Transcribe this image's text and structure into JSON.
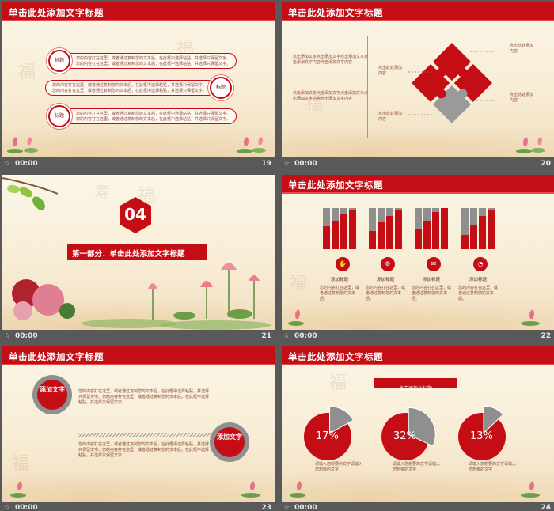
{
  "slides": [
    {
      "number": "19",
      "time": "00:00",
      "title": "单击此处添加文字标题",
      "rows": [
        {
          "badge": "标题",
          "text": "您的内容打在这里，或者通过复制您的文本后，在此框中选择粘贴，并选择只保留文字。您的内容打在这里，或者通过复制您的文本后，在此框中选择粘贴，并选择只保留文字。"
        },
        {
          "badge": "标题",
          "text": "您的内容打在这里，或者通过复制您的文本后，在此框中选择粘贴，并选择只保留文字。您的内容打在这里，或者通过复制您的文本后，在此框中选择粘贴，并选择只保留文字。"
        },
        {
          "badge": "标题",
          "text": "您的内容打在这里，或者通过复制您的文本后，在此框中选择粘贴，并选择只保留文字。您的内容打在这里，或者通过复制您的文本后，在此框中选择粘贴，并选择只保留文字。"
        }
      ]
    },
    {
      "number": "20",
      "time": "00:00",
      "title": "单击此处添加文字标题",
      "left_text": "点击添加文本点击添加文字点击添加文本点击添加文字内容点击添加文字内容",
      "left_text2": "点击添加文本点击添加文字点击添加文本点击添加文字内容点击添加文字内容",
      "labels": [
        "点击此处添加内容",
        "点击此处添加内容",
        "点击此处添加内容",
        "点击此处添加内容"
      ]
    },
    {
      "number": "21",
      "time": "00:00",
      "section_number": "04",
      "section_title": "第一部分：单击此处添加文字标题"
    },
    {
      "number": "22",
      "time": "00:00",
      "title": "单击此处添加文字标题",
      "groups": [
        {
          "label": "添加标题",
          "text": "您的内容打在这里，或者通过复制您的文本后。"
        },
        {
          "label": "添加标题",
          "text": "您的内容打在这里，或者通过复制您的文本后。"
        },
        {
          "label": "添加标题",
          "text": "您的内容打在这里，或者通过复制您的文本后。"
        },
        {
          "label": "添加标题",
          "text": "您的内容打在这里，或者通过复制您的文本后。"
        }
      ],
      "bar_levels": [
        [
          0.55,
          0.7,
          0.85,
          0.95
        ],
        [
          0.45,
          0.65,
          0.8,
          0.95
        ],
        [
          0.5,
          0.7,
          0.9,
          1.0
        ],
        [
          0.35,
          0.6,
          0.8,
          0.95
        ]
      ]
    },
    {
      "number": "23",
      "time": "00:00",
      "title": "单击此处添加文字标题",
      "circle1": "添加文字",
      "circle2": "添加文字",
      "text1": "您的内容打在这里，或者通过复制您的文本后，在此框中选择粘贴，并选择只保留文字。您的内容打在这里，或者通过复制您的文本后，在此框中选择粘贴，并选择只保留文字。",
      "text2": "您的内容打在这里，或者通过复制您的文本后，在此框中选择粘贴，并选择只保留文字。您的内容打在这里，或者通过复制您的文本后，在此框中选择粘贴，并选择只保留文字。"
    },
    {
      "number": "24",
      "time": "00:00",
      "title": "单击此处添加文字标题",
      "banner": "点击添加小标题",
      "pies": [
        {
          "value": "17%",
          "fraction": 0.17,
          "caption": "请输入您想要的文字请输入您想要的文字"
        },
        {
          "value": "32%",
          "fraction": 0.32,
          "caption": "请输入您想要的文字请输入您想要的文字"
        },
        {
          "value": "13%",
          "fraction": 0.13,
          "caption": "请输入您想要的文字请输入您想要的文字"
        }
      ]
    }
  ],
  "colors": {
    "primary": "#c40d14",
    "gray": "#8f8f8f",
    "background": "#595959"
  }
}
